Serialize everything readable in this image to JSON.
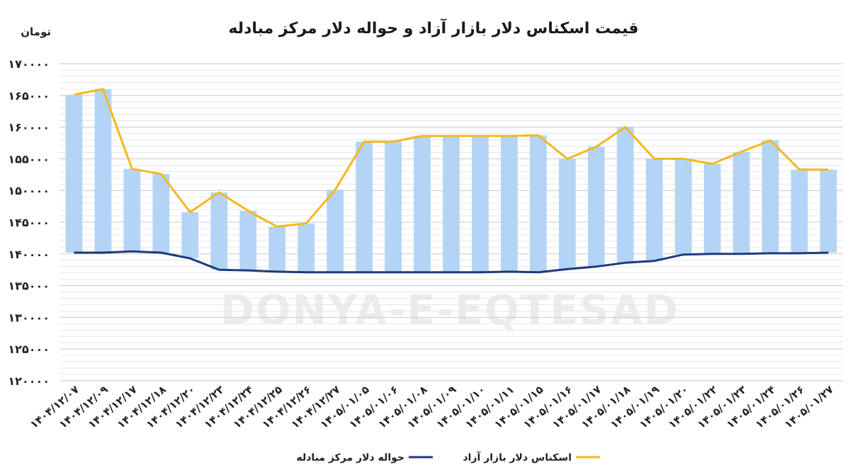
{
  "chart_data": {
    "type": "line",
    "title": "قیمت اسکناس دلار بازار آزاد و حواله دلار مرکز مبادله",
    "ylabel": "تومان",
    "ylim": [
      120000,
      170000
    ],
    "yticks": [
      120000,
      125000,
      130000,
      135000,
      140000,
      145000,
      150000,
      155000,
      160000,
      165000,
      170000
    ],
    "ytick_labels": [
      "۱۲۰۰۰۰",
      "۱۲۵۰۰۰",
      "۱۳۰۰۰۰",
      "۱۳۵۰۰۰",
      "۱۴۰۰۰۰",
      "۱۴۵۰۰۰",
      "۱۵۰۰۰۰",
      "۱۵۵۰۰۰",
      "۱۶۰۰۰۰",
      "۱۶۵۰۰۰",
      "۱۷۰۰۰۰"
    ],
    "grid": true,
    "legend_position": "bottom",
    "categories": [
      "۱۴۰۴/۱۲/۰۷",
      "۱۴۰۴/۱۲/۰۹",
      "۱۴۰۴/۱۲/۱۷",
      "۱۴۰۴/۱۲/۱۸",
      "۱۴۰۴/۱۲/۲۰",
      "۱۴۰۴/۱۲/۲۳",
      "۱۴۰۴/۱۲/۲۴",
      "۱۴۰۴/۱۲/۲۵",
      "۱۴۰۴/۱۲/۲۶",
      "۱۴۰۴/۱۲/۲۷",
      "۱۴۰۵/۰۱/۰۵",
      "۱۴۰۵/۰۱/۰۶",
      "۱۴۰۵/۰۱/۰۸",
      "۱۴۰۵/۰۱/۰۹",
      "۱۴۰۵/۰۱/۱۰",
      "۱۴۰۵/۰۱/۱۱",
      "۱۴۰۵/۰۱/۱۵",
      "۱۴۰۵/۰۱/۱۶",
      "۱۴۰۵/۰۱/۱۷",
      "۱۴۰۵/۰۱/۱۸",
      "۱۴۰۵/۰۱/۱۹",
      "۱۴۰۵/۰۱/۲۰",
      "۱۴۰۵/۰۱/۲۲",
      "۱۴۰۵/۰۱/۲۳",
      "۱۴۰۵/۰۱/۲۴",
      "۱۴۰۵/۰۱/۲۶",
      "۱۴۰۵/۰۱/۲۷"
    ],
    "series": [
      {
        "name": "اسکناس دلار بازار آزاد",
        "color": "#f5b81c",
        "values": [
          165100,
          166000,
          153400,
          152600,
          146600,
          149700,
          146800,
          144300,
          144800,
          150100,
          157700,
          157700,
          158600,
          158600,
          158600,
          158600,
          158700,
          155000,
          156900,
          160000,
          155000,
          155000,
          154200,
          156100,
          157900,
          153300,
          153300
        ]
      },
      {
        "name": "حواله دلار مرکز مبادله",
        "color": "#1f3a7a",
        "values": [
          140200,
          140200,
          140400,
          140200,
          139300,
          137500,
          137400,
          137200,
          137100,
          137100,
          137100,
          137100,
          137100,
          137100,
          137100,
          137200,
          137100,
          137600,
          138000,
          138600,
          138900,
          139900,
          140000,
          140000,
          140100,
          140100,
          140200
        ]
      }
    ],
    "band_color": "#b3d4f5"
  },
  "watermark": {
    "text": "DONYA-E-EQTESAD"
  }
}
